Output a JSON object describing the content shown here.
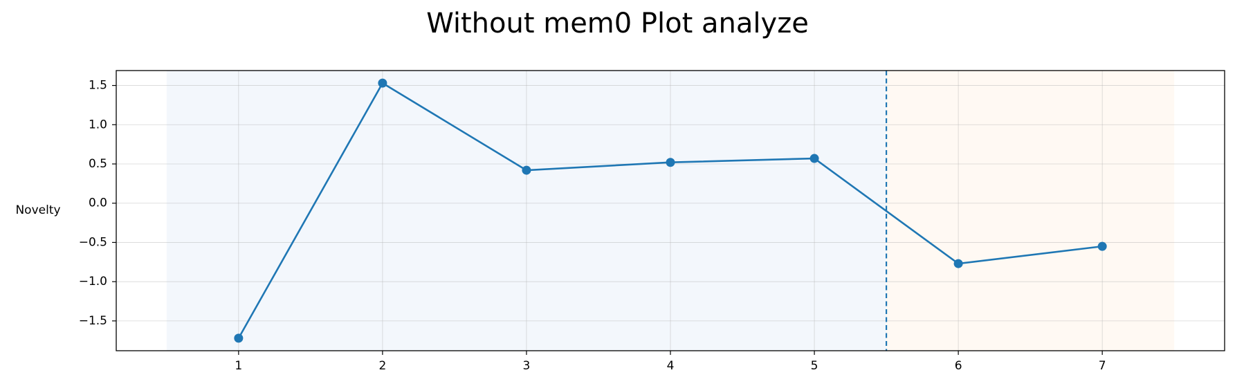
{
  "chart_data": {
    "type": "line",
    "title": "Without mem0 Plot analyze",
    "xlabel": "",
    "ylabel": "Novelty",
    "x": [
      1,
      2,
      3,
      4,
      5,
      6,
      7
    ],
    "series": [
      {
        "values": [
          -1.72,
          1.53,
          0.42,
          0.52,
          0.57,
          -0.77,
          -0.55
        ],
        "color": "#1f77b4",
        "marker": "circle"
      }
    ],
    "xlim": [
      0.15,
      7.85
    ],
    "ylim": [
      -1.88,
      1.69
    ],
    "xticks": [
      1,
      2,
      3,
      4,
      5,
      6,
      7
    ],
    "xtick_labels": [
      "1",
      "2",
      "3",
      "4",
      "5",
      "6",
      "7"
    ],
    "yticks": [
      1.5,
      1.0,
      0.5,
      0.0,
      -0.5,
      -1.0,
      -1.5
    ],
    "ytick_labels": [
      "1.5",
      "1.0",
      "0.5",
      "0.0",
      "−0.5",
      "−1.0",
      "−1.5"
    ],
    "grid": true,
    "regions": [
      {
        "x_start": 0.5,
        "x_end": 5.5,
        "color": "#f3f7fc"
      },
      {
        "x_start": 5.5,
        "x_end": 7.5,
        "color": "#fff9f3"
      }
    ],
    "vline": {
      "x": 5.5,
      "color": "#1f77b4",
      "style": "dashed"
    }
  }
}
